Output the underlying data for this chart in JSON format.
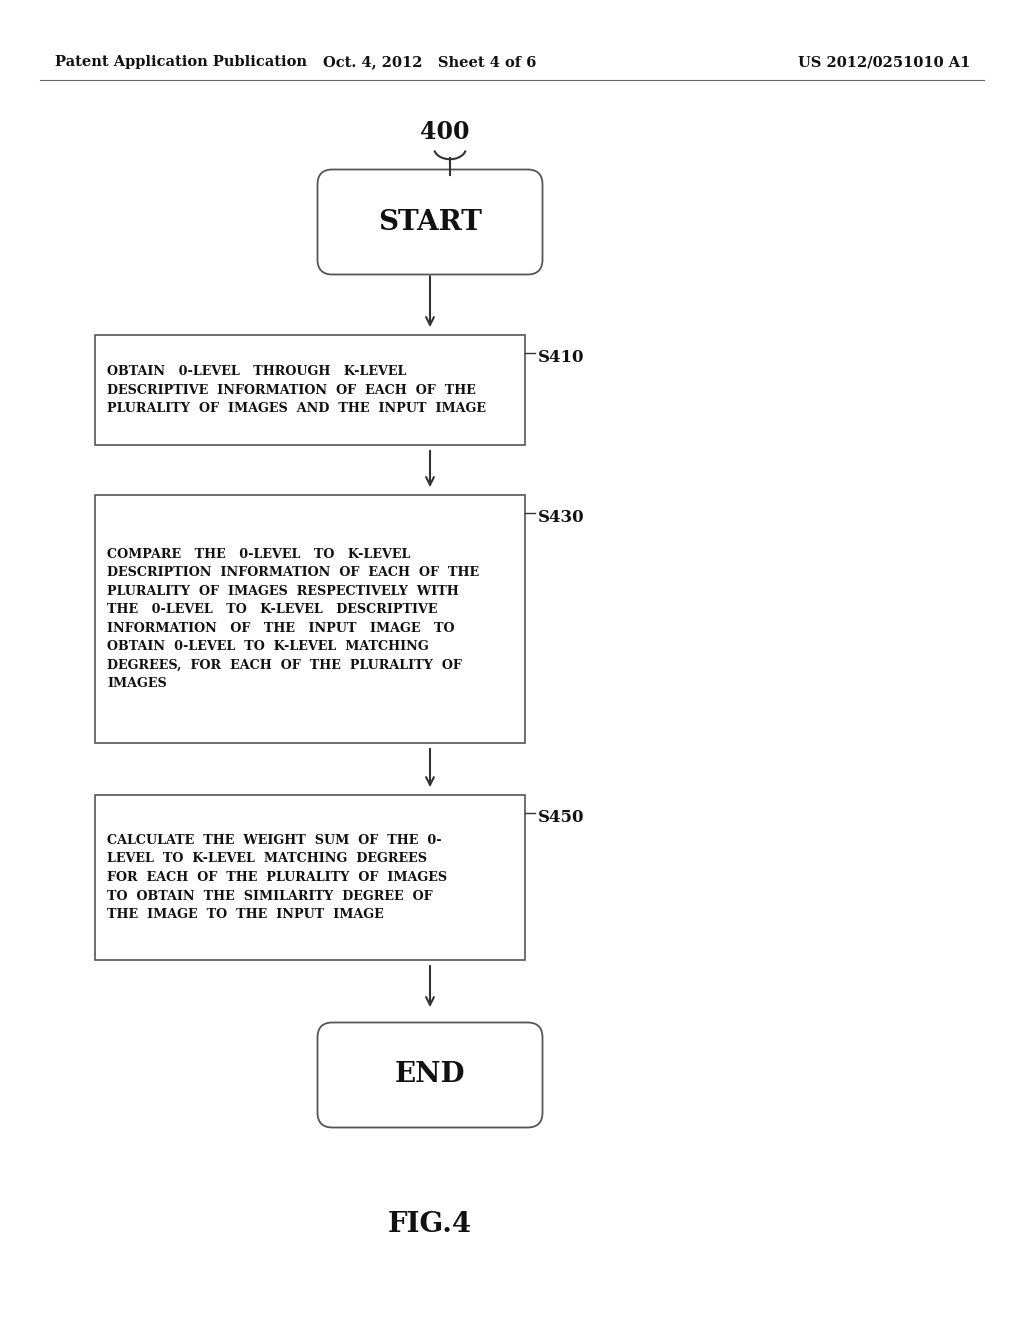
{
  "bg_color": "#ffffff",
  "header_left": "Patent Application Publication",
  "header_mid": "Oct. 4, 2012   Sheet 4 of 6",
  "header_right": "US 2012/0251010 A1",
  "fig_label": "FIG.4",
  "diagram_label": "400",
  "start_text": "START",
  "end_text": "END",
  "header_fontsize": 10.5,
  "boxes": [
    {
      "id": "S410",
      "label": "S410",
      "text": "OBTAIN   0-LEVEL   THROUGH   K-LEVEL\nDESCRIPTIVE  INFORMATION  OF  EACH  OF  THE\nPLURALITY  OF  IMAGES  AND  THE  INPUT  IMAGE"
    },
    {
      "id": "S430",
      "label": "S430",
      "text": "COMPARE   THE   0-LEVEL   TO   K-LEVEL\nDESCRIPTION  INFORMATION  OF  EACH  OF  THE\nPLURALITY  OF  IMAGES  RESPECTIVELY  WITH\nTHE   0-LEVEL   TO   K-LEVEL   DESCRIPTIVE\nINFORMATION   OF   THE   INPUT   IMAGE   TO\nOBTAIN  0-LEVEL  TO  K-LEVEL  MATCHING\nDEGREES,  FOR  EACH  OF  THE  PLURALITY  OF\nIMAGES"
    },
    {
      "id": "S450",
      "label": "S450",
      "text": "CALCULATE  THE  WEIGHT  SUM  OF  THE  0-\nLEVEL  TO  K-LEVEL  MATCHING  DEGREES\nFOR  EACH  OF  THE  PLURALITY  OF  IMAGES\nTO  OBTAIN  THE  SIMILARITY  DEGREE  OF\nTHE  IMAGE  TO  THE  INPUT  IMAGE"
    }
  ]
}
